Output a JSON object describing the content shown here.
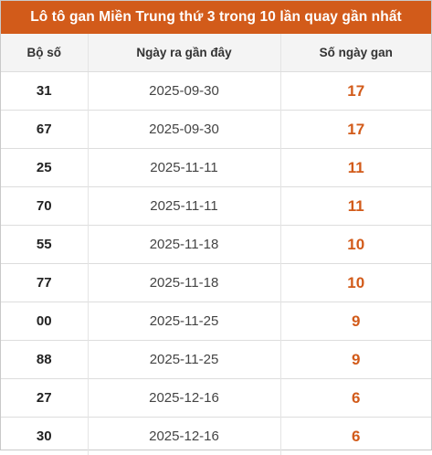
{
  "title": "Lô tô gan Miền Trung thứ 3 trong 10 lần quay gần nhất",
  "accent_color": "#d25b1a",
  "columns": [
    "Bộ số",
    "Ngày ra gần đây",
    "Số ngày gan"
  ],
  "rows": [
    {
      "number": "31",
      "date": "2025-09-30",
      "days": "17"
    },
    {
      "number": "67",
      "date": "2025-09-30",
      "days": "17"
    },
    {
      "number": "25",
      "date": "2025-11-11",
      "days": "11"
    },
    {
      "number": "70",
      "date": "2025-11-11",
      "days": "11"
    },
    {
      "number": "55",
      "date": "2025-11-18",
      "days": "10"
    },
    {
      "number": "77",
      "date": "2025-11-18",
      "days": "10"
    },
    {
      "number": "00",
      "date": "2025-11-25",
      "days": "9"
    },
    {
      "number": "88",
      "date": "2025-11-25",
      "days": "9"
    },
    {
      "number": "27",
      "date": "2025-12-16",
      "days": "6"
    },
    {
      "number": "30",
      "date": "2025-12-16",
      "days": "6"
    }
  ]
}
